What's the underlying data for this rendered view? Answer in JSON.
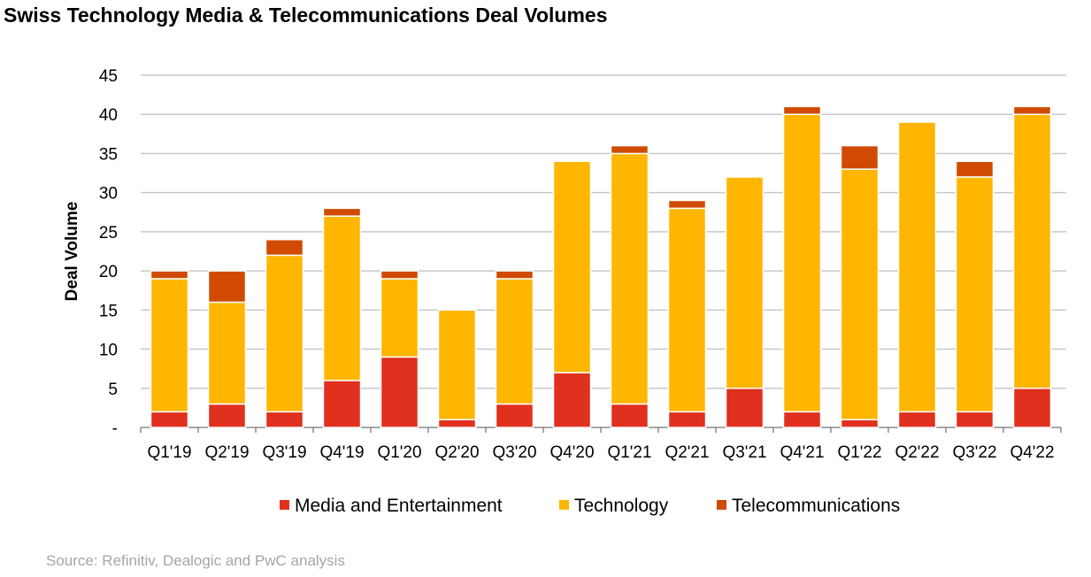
{
  "chart_data": {
    "type": "bar",
    "stacked": true,
    "title": "Swiss Technology Media & Telecommunications Deal Volumes",
    "xlabel": "",
    "ylabel": "Deal Volume",
    "ylim": [
      0,
      45
    ],
    "yticks": [
      0,
      5,
      10,
      15,
      20,
      25,
      30,
      35,
      40,
      45
    ],
    "ytick_labels": [
      "-",
      "5",
      "10",
      "15",
      "20",
      "25",
      "30",
      "35",
      "40",
      "45"
    ],
    "grid": true,
    "legend_position": "bottom",
    "categories": [
      "Q1'19",
      "Q2'19",
      "Q3'19",
      "Q4'19",
      "Q1'20",
      "Q2'20",
      "Q3'20",
      "Q4'20",
      "Q1'21",
      "Q2'21",
      "Q3'21",
      "Q4'21",
      "Q1'22",
      "Q2'22",
      "Q3'22",
      "Q4'22"
    ],
    "series": [
      {
        "name": "Media and Entertainment",
        "color": "#E0301E",
        "values": [
          2,
          3,
          2,
          6,
          9,
          1,
          3,
          7,
          3,
          2,
          5,
          2,
          1,
          2,
          2,
          5
        ]
      },
      {
        "name": "Technology",
        "color": "#FFB600",
        "values": [
          17,
          13,
          20,
          21,
          10,
          14,
          16,
          27,
          32,
          26,
          27,
          38,
          32,
          37,
          30,
          35
        ]
      },
      {
        "name": "Telecommunications",
        "color": "#D04A02",
        "values": [
          1,
          4,
          2,
          1,
          1,
          0,
          1,
          0,
          1,
          1,
          0,
          1,
          3,
          0,
          2,
          1
        ]
      }
    ],
    "source": "Source: Refinitiv, Dealogic and PwC analysis"
  }
}
